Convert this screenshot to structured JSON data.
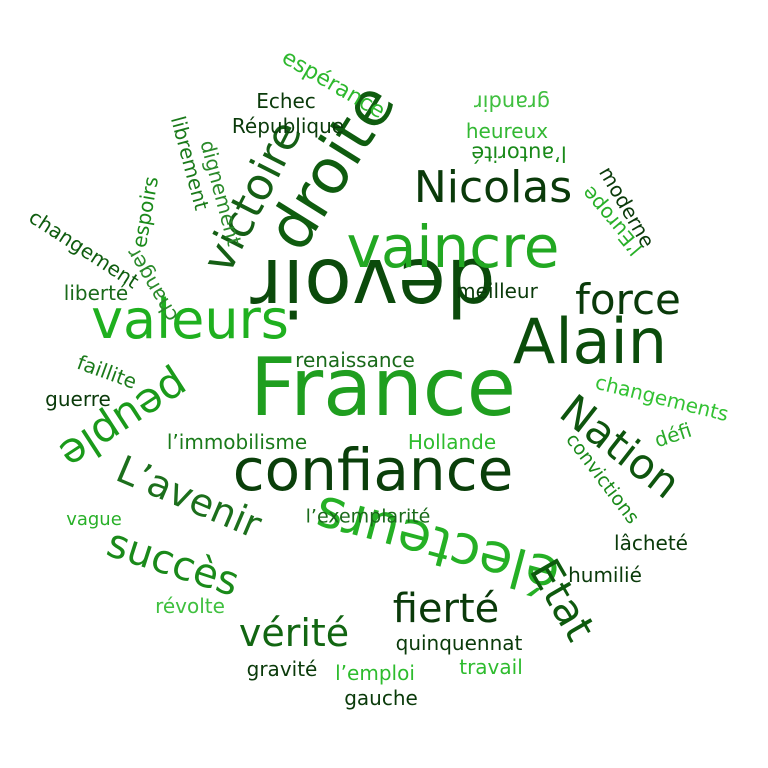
{
  "words": [
    {
      "text": "France",
      "color": "#1f9e1f"
    },
    {
      "text": "devoir",
      "color": "#0b4a0b"
    },
    {
      "text": "droite",
      "color": "#0f5c0f"
    },
    {
      "text": "vaincre",
      "color": "#22a822"
    },
    {
      "text": "Alain",
      "color": "#0b4d0b"
    },
    {
      "text": "confiance",
      "color": "#0a3f0a"
    },
    {
      "text": "valeurs",
      "color": "#1fb01f"
    },
    {
      "text": "victoire",
      "color": "#155f15"
    },
    {
      "text": "électeurs",
      "color": "#25b025"
    },
    {
      "text": "Nicolas",
      "color": "#0a3a0a"
    },
    {
      "text": "force",
      "color": "#0a3a0a"
    },
    {
      "text": "Nation",
      "color": "#0e550e"
    },
    {
      "text": "peuple",
      "color": "#1a9a1a"
    },
    {
      "text": "L’avenir",
      "color": "#1c6f1c"
    },
    {
      "text": "succès",
      "color": "#1a8a1a"
    },
    {
      "text": "fierté",
      "color": "#0a3a0a"
    },
    {
      "text": "Etat",
      "color": "#0e5a0e"
    },
    {
      "text": "vérité",
      "color": "#126612"
    },
    {
      "text": "espérance",
      "color": "#2eb82e"
    },
    {
      "text": "Echec",
      "color": "#0a3a0a"
    },
    {
      "text": "République",
      "color": "#0a3a0a"
    },
    {
      "text": "librement",
      "color": "#1a7a1a"
    },
    {
      "text": "dignement",
      "color": "#2a8a2a"
    },
    {
      "text": "espoirs",
      "color": "#1a8a1a"
    },
    {
      "text": "changement",
      "color": "#0e5c0e"
    },
    {
      "text": "grandir",
      "color": "#3fbf3f"
    },
    {
      "text": "heureux",
      "color": "#33b833"
    },
    {
      "text": "l’autorité",
      "color": "#1a8a1a"
    },
    {
      "text": "moderne",
      "color": "#0a3a0a"
    },
    {
      "text": "l’Europe",
      "color": "#28b028"
    },
    {
      "text": "meilleur",
      "color": "#0a3a0a"
    },
    {
      "text": "liberté",
      "color": "#1a6a1a"
    },
    {
      "text": "changer",
      "color": "#2a8a2a"
    },
    {
      "text": "faillite",
      "color": "#1a7a1a"
    },
    {
      "text": "renaissance",
      "color": "#1a6a1a"
    },
    {
      "text": "guerre",
      "color": "#0a3a0a"
    },
    {
      "text": "changements",
      "color": "#33c233"
    },
    {
      "text": "défi",
      "color": "#2aaa2a"
    },
    {
      "text": "l’immobilisme",
      "color": "#1a7a1a"
    },
    {
      "text": "Hollande",
      "color": "#2ebc2e"
    },
    {
      "text": "convictions",
      "color": "#1a8a1a"
    },
    {
      "text": "vague",
      "color": "#28b028"
    },
    {
      "text": "l’exemplarité",
      "color": "#1a6a1a"
    },
    {
      "text": "lâcheté",
      "color": "#0a3a0a"
    },
    {
      "text": "humilié",
      "color": "#0a3a0a"
    },
    {
      "text": "révolte",
      "color": "#3fc03f"
    },
    {
      "text": "quinquennat",
      "color": "#0a3a0a"
    },
    {
      "text": "gravité",
      "color": "#0a3a0a"
    },
    {
      "text": "l’emploi",
      "color": "#2ebc2e"
    },
    {
      "text": "travail",
      "color": "#2ebc2e"
    },
    {
      "text": "gauche",
      "color": "#0a3a0a"
    }
  ]
}
